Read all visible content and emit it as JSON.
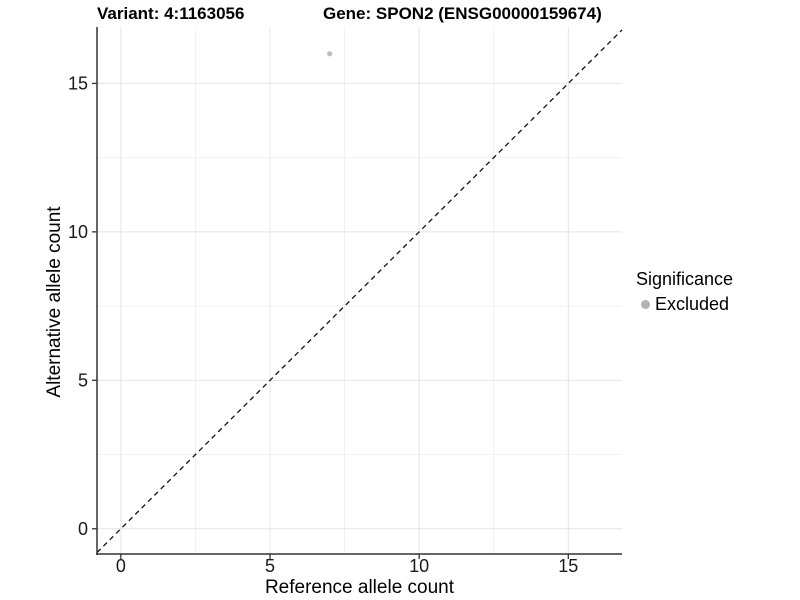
{
  "title": {
    "variant": "Variant: 4:1163056",
    "gene": "Gene: SPON2 (ENSG00000159674)"
  },
  "axes": {
    "x_label": "Reference allele count",
    "y_label": "Alternative allele count"
  },
  "legend": {
    "title": "Significance",
    "items": [
      {
        "label": "Excluded",
        "color": "#bebebe"
      }
    ]
  },
  "colors": {
    "point": "#bebebe",
    "legend_dot": "#b2b2b2",
    "grid_major": "#e4e4e4",
    "grid_minor": "#f1f1f1",
    "axis_line": "#333333",
    "tick_label": "#1a1a1a",
    "reference_line": "#111111",
    "background": "#ffffff"
  },
  "chart_data": {
    "type": "scatter",
    "title": "Variant: 4:1163056   Gene: SPON2 (ENSG00000159674)",
    "xlabel": "Reference allele count",
    "ylabel": "Alternative allele count",
    "xlim": [
      -0.8,
      16.8
    ],
    "ylim": [
      -0.85,
      16.9
    ],
    "x_major_ticks": [
      0,
      5,
      10,
      15
    ],
    "x_minor_ticks": [
      2.5,
      7.5,
      12.5
    ],
    "y_major_ticks": [
      0,
      5,
      10,
      15
    ],
    "y_minor_ticks": [
      2.5,
      7.5,
      12.5
    ],
    "grid": true,
    "legend_position": "right",
    "legend_title": "Significance",
    "series": [
      {
        "name": "Excluded",
        "color": "#bebebe",
        "points": [
          {
            "x": 7,
            "y": 16
          }
        ]
      }
    ],
    "reference_line": {
      "type": "identity",
      "slope": 1,
      "intercept": 0,
      "style": "dashed"
    }
  }
}
